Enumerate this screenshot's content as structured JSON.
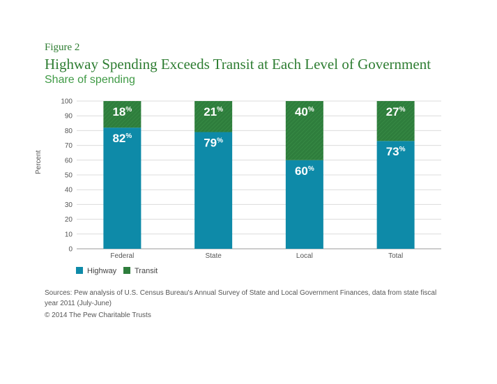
{
  "figure_label": "Figure 2",
  "title": "Highway Spending Exceeds Transit at Each Level of Government",
  "subtitle": "Share of spending",
  "sources": "Sources: Pew analysis of U.S. Census Bureau's Annual Survey of State and Local Government Finances, data from state fiscal year 2011 (July-June)",
  "copyright": "© 2014 The Pew Charitable Trusts",
  "colors": {
    "highway": "#0e8aa8",
    "transit": "#2e7d3c",
    "title": "#2e7d32"
  },
  "chart_data": {
    "type": "bar",
    "stacked": true,
    "ylabel": "Percent",
    "xlabel": "",
    "ylim": [
      0,
      100
    ],
    "yticks": [
      0,
      10,
      20,
      30,
      40,
      50,
      60,
      70,
      80,
      90,
      100
    ],
    "grid": true,
    "legend_position": "bottom-left",
    "categories": [
      "Federal",
      "State",
      "Local",
      "Total"
    ],
    "series": [
      {
        "name": "Highway",
        "values": [
          82,
          79,
          60,
          73
        ]
      },
      {
        "name": "Transit",
        "values": [
          18,
          21,
          40,
          27
        ]
      }
    ],
    "label_suffix": "%"
  }
}
